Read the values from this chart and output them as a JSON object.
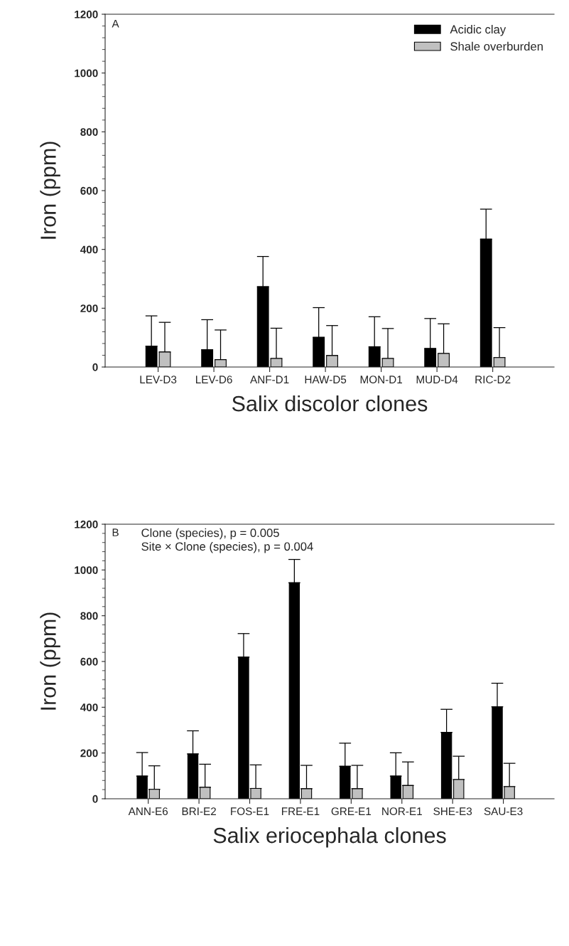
{
  "chart_data": [
    {
      "type": "bar",
      "xlabel": "Salix discolor clones",
      "ylabel": "Iron (ppm)",
      "categories": [
        "LEV-D3",
        "LEV-D6",
        "ANF-D1",
        "HAW-D5",
        "MON-D1",
        "MUD-D4",
        "RIC-D2"
      ],
      "series": [
        {
          "name": "Acidic clay",
          "color": "#000000",
          "values": [
            71,
            59,
            273,
            101,
            69,
            63,
            435
          ],
          "errors": [
            [
              71,
              174
            ],
            [
              59,
              161
            ],
            [
              273,
              376
            ],
            [
              101,
              202
            ],
            [
              69,
              171
            ],
            [
              63,
              165
            ],
            [
              435,
              537
            ]
          ]
        },
        {
          "name": "Shale overburden",
          "color": "#c0c0c0",
          "values": [
            51,
            25,
            29,
            39,
            29,
            46,
            32
          ],
          "errors": [
            [
              51,
              152
            ],
            [
              25,
              126
            ],
            [
              29,
              132
            ],
            [
              39,
              141
            ],
            [
              29,
              131
            ],
            [
              46,
              147
            ],
            [
              32,
              134
            ]
          ]
        }
      ],
      "ylim": [
        0,
        1200
      ],
      "yticks": [
        0,
        200,
        400,
        600,
        800,
        1000,
        1200
      ],
      "grid": false,
      "legend": "top right",
      "annotations": [
        "A"
      ]
    },
    {
      "type": "bar",
      "xlabel": "Salix eriocephala clones",
      "ylabel": "Iron (ppm)",
      "categories": [
        "ANN-E6",
        "BRI-E2",
        "FOS-E1",
        "FRE-E1",
        "GRE-E1",
        "NOR-E1",
        "SHE-E3",
        "SAU-E3"
      ],
      "series": [
        {
          "color": "#000000",
          "values": [
            99,
            196,
            619,
            944,
            142,
            99,
            290,
            402
          ],
          "errors": [
            [
              99,
              202
            ],
            [
              196,
              297
            ],
            [
              619,
              722
            ],
            [
              944,
              1046
            ],
            [
              142,
              243
            ],
            [
              99,
              201
            ],
            [
              290,
              391
            ],
            [
              402,
              505
            ]
          ]
        },
        {
          "color": "#c0c0c0",
          "values": [
            41,
            50,
            45,
            44,
            44,
            58,
            84,
            53
          ],
          "errors": [
            [
              41,
              144
            ],
            [
              50,
              151
            ],
            [
              45,
              148
            ],
            [
              44,
              146
            ],
            [
              44,
              146
            ],
            [
              58,
              161
            ],
            [
              84,
              186
            ],
            [
              53,
              155
            ]
          ]
        }
      ],
      "ylim": [
        0,
        1200
      ],
      "yticks": [
        0,
        200,
        400,
        600,
        800,
        1000,
        1200
      ],
      "grid": false,
      "legend": false,
      "annotations": [
        "B",
        "Clone (species), p = 0.005\nSite × Clone (species), p = 0.004"
      ]
    }
  ]
}
